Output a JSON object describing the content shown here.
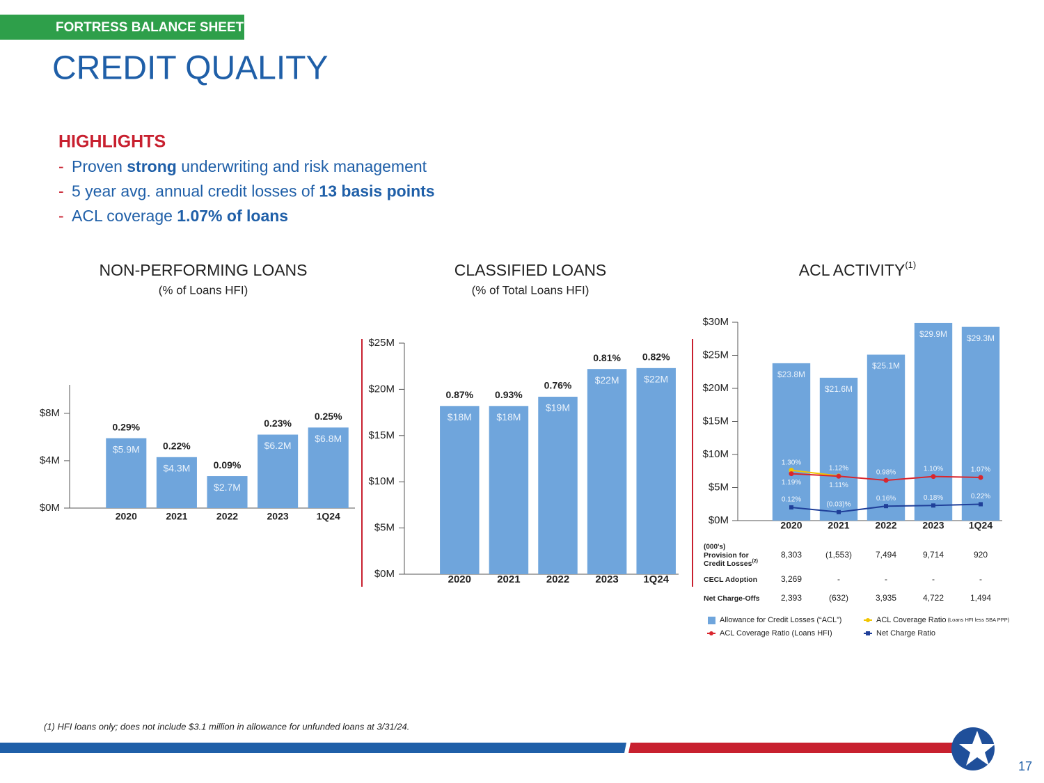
{
  "header": {
    "section": "FORTRESS BALANCE SHEET",
    "title": "CREDIT QUALITY"
  },
  "highlights": {
    "heading": "HIGHLIGHTS",
    "items": [
      {
        "parts": [
          {
            "text": "Proven "
          },
          {
            "text": "strong",
            "bold": true
          },
          {
            "text": " underwriting and risk management"
          }
        ]
      },
      {
        "parts": [
          {
            "text": "5 year avg. annual credit losses of "
          },
          {
            "text": "13 basis points",
            "bold": true
          }
        ]
      },
      {
        "parts": [
          {
            "text": "ACL coverage "
          },
          {
            "text": "1.07% of loans",
            "bold": true
          }
        ]
      }
    ]
  },
  "footnote": "(1) HFI loans only; does not include $3.1 million in allowance for unfunded loans at 3/31/24.",
  "page_number": 17,
  "chart_data": [
    {
      "type": "bar",
      "title": "NON-PERFORMING LOANS",
      "subtitle": "(% of Loans HFI)",
      "categories": [
        "2020",
        "2021",
        "2022",
        "2023",
        "1Q24"
      ],
      "values": [
        5.9,
        4.3,
        2.7,
        6.2,
        6.8
      ],
      "value_labels": [
        "$5.9M",
        "$4.3M",
        "$2.7M",
        "$6.2M",
        "$6.8M"
      ],
      "annotations": [
        "0.29%",
        "0.22%",
        "0.09%",
        "0.23%",
        "0.25%"
      ],
      "color": "#6fa5dc",
      "ylim": [
        0,
        10.4
      ],
      "yticks": [
        {
          "value": 0,
          "label": "$0M"
        },
        {
          "value": 4,
          "label": "$4M"
        },
        {
          "value": 8,
          "label": "$8M"
        }
      ]
    },
    {
      "type": "bar",
      "title": "CLASSIFIED LOANS",
      "subtitle": "(% of Total Loans HFI)",
      "categories": [
        "2020",
        "2021",
        "2022",
        "2023",
        "1Q24"
      ],
      "values": [
        18.2,
        18.2,
        19.2,
        22.2,
        22.3
      ],
      "value_labels": [
        "$18M",
        "$18M",
        "$19M",
        "$22M",
        "$22M"
      ],
      "annotations": [
        "0.87%",
        "0.93%",
        "0.76%",
        "0.81%",
        "0.82%"
      ],
      "color": "#6fa5dc",
      "ylim": [
        0,
        25
      ],
      "yticks": [
        {
          "value": 0,
          "label": "$0M"
        },
        {
          "value": 5,
          "label": "$5M"
        },
        {
          "value": 10,
          "label": "$10M"
        },
        {
          "value": 15,
          "label": "$15M"
        },
        {
          "value": 20,
          "label": "$20M"
        },
        {
          "value": 25,
          "label": "$25M"
        }
      ]
    },
    {
      "type": "combo",
      "title": "ACL ACTIVITY",
      "title_note": "(1)",
      "categories": [
        "2020",
        "2021",
        "2022",
        "2023",
        "1Q24"
      ],
      "series": [
        {
          "name": "Allowance for Credit Losses (“ACL”)",
          "type": "bar",
          "color": "#6fa5dc",
          "values": [
            23.8,
            21.6,
            25.1,
            29.9,
            29.3
          ],
          "value_labels": [
            "$23.8M",
            "$21.6M",
            "$25.1M",
            "$29.9M",
            "$29.3M"
          ]
        },
        {
          "name": "ACL Coverage Ratio",
          "name_note": "(Loans HFI less SBA PPP)",
          "type": "line",
          "axis": "y2",
          "color": "#f2c500",
          "values": [
            1.3,
            1.12,
            null,
            null,
            null
          ],
          "value_labels": [
            "1.30%",
            "1.12%",
            null,
            null,
            null
          ]
        },
        {
          "name": "ACL Coverage Ratio (Loans HFI)",
          "type": "line",
          "axis": "y2",
          "color": "#d9262e",
          "values": [
            1.19,
            1.11,
            0.98,
            1.1,
            1.07
          ],
          "value_labels": [
            "1.19%",
            "1.11%",
            "0.98%",
            "1.10%",
            "1.07%"
          ]
        },
        {
          "name": "Net Charge Ratio",
          "type": "line",
          "axis": "y2",
          "color": "#1f3f99",
          "values": [
            0.12,
            -0.03,
            0.16,
            0.18,
            0.22
          ],
          "value_labels": [
            "0.12%",
            "(0.03)%",
            "0.16%",
            "0.18%",
            "0.22%"
          ]
        }
      ],
      "ylim": [
        0,
        30
      ],
      "yticks": [
        {
          "value": 0,
          "label": "$0M"
        },
        {
          "value": 5,
          "label": "$5M"
        },
        {
          "value": 10,
          "label": "$10M"
        },
        {
          "value": 15,
          "label": "$15M"
        },
        {
          "value": 20,
          "label": "$20M"
        },
        {
          "value": 25,
          "label": "$25M"
        },
        {
          "value": 30,
          "label": "$30M"
        }
      ],
      "y2lim": [
        -0.3,
        6
      ],
      "legend": "bottom",
      "table": {
        "note": "(000's)",
        "rows": [
          {
            "label": [
              "Provision for",
              "Credit Losses"
            ],
            "label_note": "(2)",
            "values": [
              "8,303",
              "(1,553)",
              "7,494",
              "9,714",
              "920"
            ]
          },
          {
            "label": [
              "CECL Adoption"
            ],
            "values": [
              "3,269",
              "-",
              "-",
              "-",
              "-"
            ]
          },
          {
            "label": [
              "Net Charge-Offs"
            ],
            "values": [
              "2,393",
              "(632)",
              "3,935",
              "4,722",
              "1,494"
            ]
          }
        ]
      }
    }
  ]
}
